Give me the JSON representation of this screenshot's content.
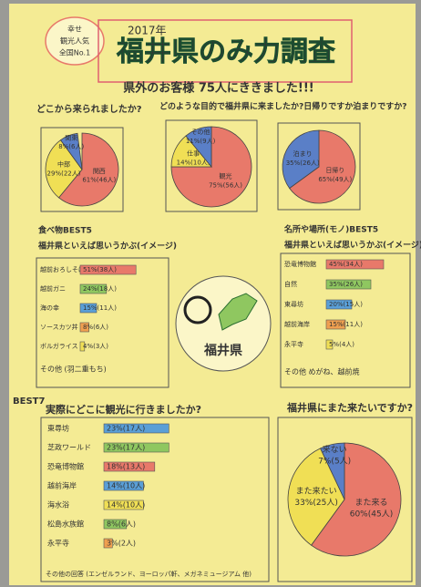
{
  "badge": [
    "幸せ",
    "観光人気",
    "全国No.1"
  ],
  "year": "2017年",
  "title": "福井県のみ力調査",
  "subtitle": "県外のお客様 75人にききました!!!",
  "question1": "どこから来られましたか?",
  "question2": "どのような目的で福井県に来ましたか?日帰りですか泊まりですか?",
  "pies": [
    {
      "slices": [
        {
          "name": "関西",
          "label": "61%(46人)",
          "value": 61,
          "color": "#e8796a"
        },
        {
          "name": "中部",
          "label": "29%(22人)",
          "value": 29,
          "color": "#f0df55"
        },
        {
          "name": "関東",
          "label": "8%(6人)",
          "value": 8,
          "color": "#5a7fc7"
        }
      ]
    },
    {
      "slices": [
        {
          "name": "観光",
          "label": "75%(56人)",
          "value": 75,
          "color": "#e8796a"
        },
        {
          "name": "仕事",
          "label": "14%(10人)",
          "value": 14,
          "color": "#f0df55"
        },
        {
          "name": "その他",
          "label": "11%(9人)",
          "value": 11,
          "color": "#5a7fc7"
        }
      ]
    },
    {
      "slices": [
        {
          "name": "日帰り",
          "label": "65%(49人)",
          "value": 65,
          "color": "#e8796a"
        },
        {
          "name": "泊まり",
          "label": "35%(26人)",
          "value": 35,
          "color": "#5a7fc7"
        }
      ]
    }
  ],
  "food": {
    "heading": "食べ物BEST5",
    "question": "福井県といえば思いうかぶ(イメージ)",
    "items": [
      {
        "name": "越前おろしそば",
        "label": "51%(38人)",
        "value": 51,
        "color": "#e8796a"
      },
      {
        "name": "越前ガニ",
        "label": "24%(18人)",
        "value": 24,
        "color": "#8fc760"
      },
      {
        "name": "海の幸",
        "label": "15%(11人)",
        "value": 15,
        "color": "#5a9fd7"
      },
      {
        "name": "ソースカツ丼",
        "label": "8%(6人)",
        "value": 8,
        "color": "#f0a050"
      },
      {
        "name": "ボルガライス",
        "label": "4%(3人)",
        "value": 4,
        "color": "#f0df55"
      }
    ],
    "other": "その他 (羽二重もち)"
  },
  "places": {
    "heading": "名所や場所(モノ)BEST5",
    "question": "福井県といえば思いうかぶ(イメージ)",
    "items": [
      {
        "name": "恐竜博物館",
        "label": "45%(34人)",
        "value": 45,
        "color": "#e8796a"
      },
      {
        "name": "自然",
        "label": "35%(26人)",
        "value": 35,
        "color": "#8fc760"
      },
      {
        "name": "東尋坊",
        "label": "20%(15人)",
        "value": 20,
        "color": "#5a9fd7"
      },
      {
        "name": "越前海岸",
        "label": "15%(11人)",
        "value": 15,
        "color": "#f0a050"
      },
      {
        "name": "永平寺",
        "label": "5%(4人)",
        "value": 5,
        "color": "#f0df55"
      }
    ],
    "other": "その他 めがね、越前焼"
  },
  "center": "福井県",
  "visited": {
    "heading": "BEST7",
    "question": "実際にどこに観光に行きましたか?",
    "items": [
      {
        "name": "東尋坊",
        "label": "23%(17人)",
        "value": 23,
        "color": "#5a9fd7"
      },
      {
        "name": "芝政ワールド",
        "label": "23%(17人)",
        "value": 23,
        "color": "#8fc760"
      },
      {
        "name": "恐竜博物館",
        "label": "18%(13人)",
        "value": 18,
        "color": "#e8796a"
      },
      {
        "name": "越前海岸",
        "label": "14%(10人)",
        "value": 14,
        "color": "#5a9fd7"
      },
      {
        "name": "海水浴",
        "label": "14%(10人)",
        "value": 14,
        "color": "#f0df55"
      },
      {
        "name": "松島水族館",
        "label": "8%(6人)",
        "value": 8,
        "color": "#8fc760"
      },
      {
        "name": "永平寺",
        "label": "3%(2人)",
        "value": 3,
        "color": "#f0a050"
      }
    ],
    "other": "その他の回答 (エンゼルランド、ヨーロッパ軒、メガネミュージアム 他)"
  },
  "again": {
    "question": "福井県にまた来たいですか?",
    "slices": [
      {
        "name": "また来る",
        "label": "60%(45人)",
        "value": 60,
        "color": "#e8796a"
      },
      {
        "name": "また来たい",
        "label": "33%(25人)",
        "value": 33,
        "color": "#f0df55"
      },
      {
        "name": "来ない",
        "label": "7%(5人)",
        "value": 7,
        "color": "#5a7fc7"
      }
    ]
  }
}
